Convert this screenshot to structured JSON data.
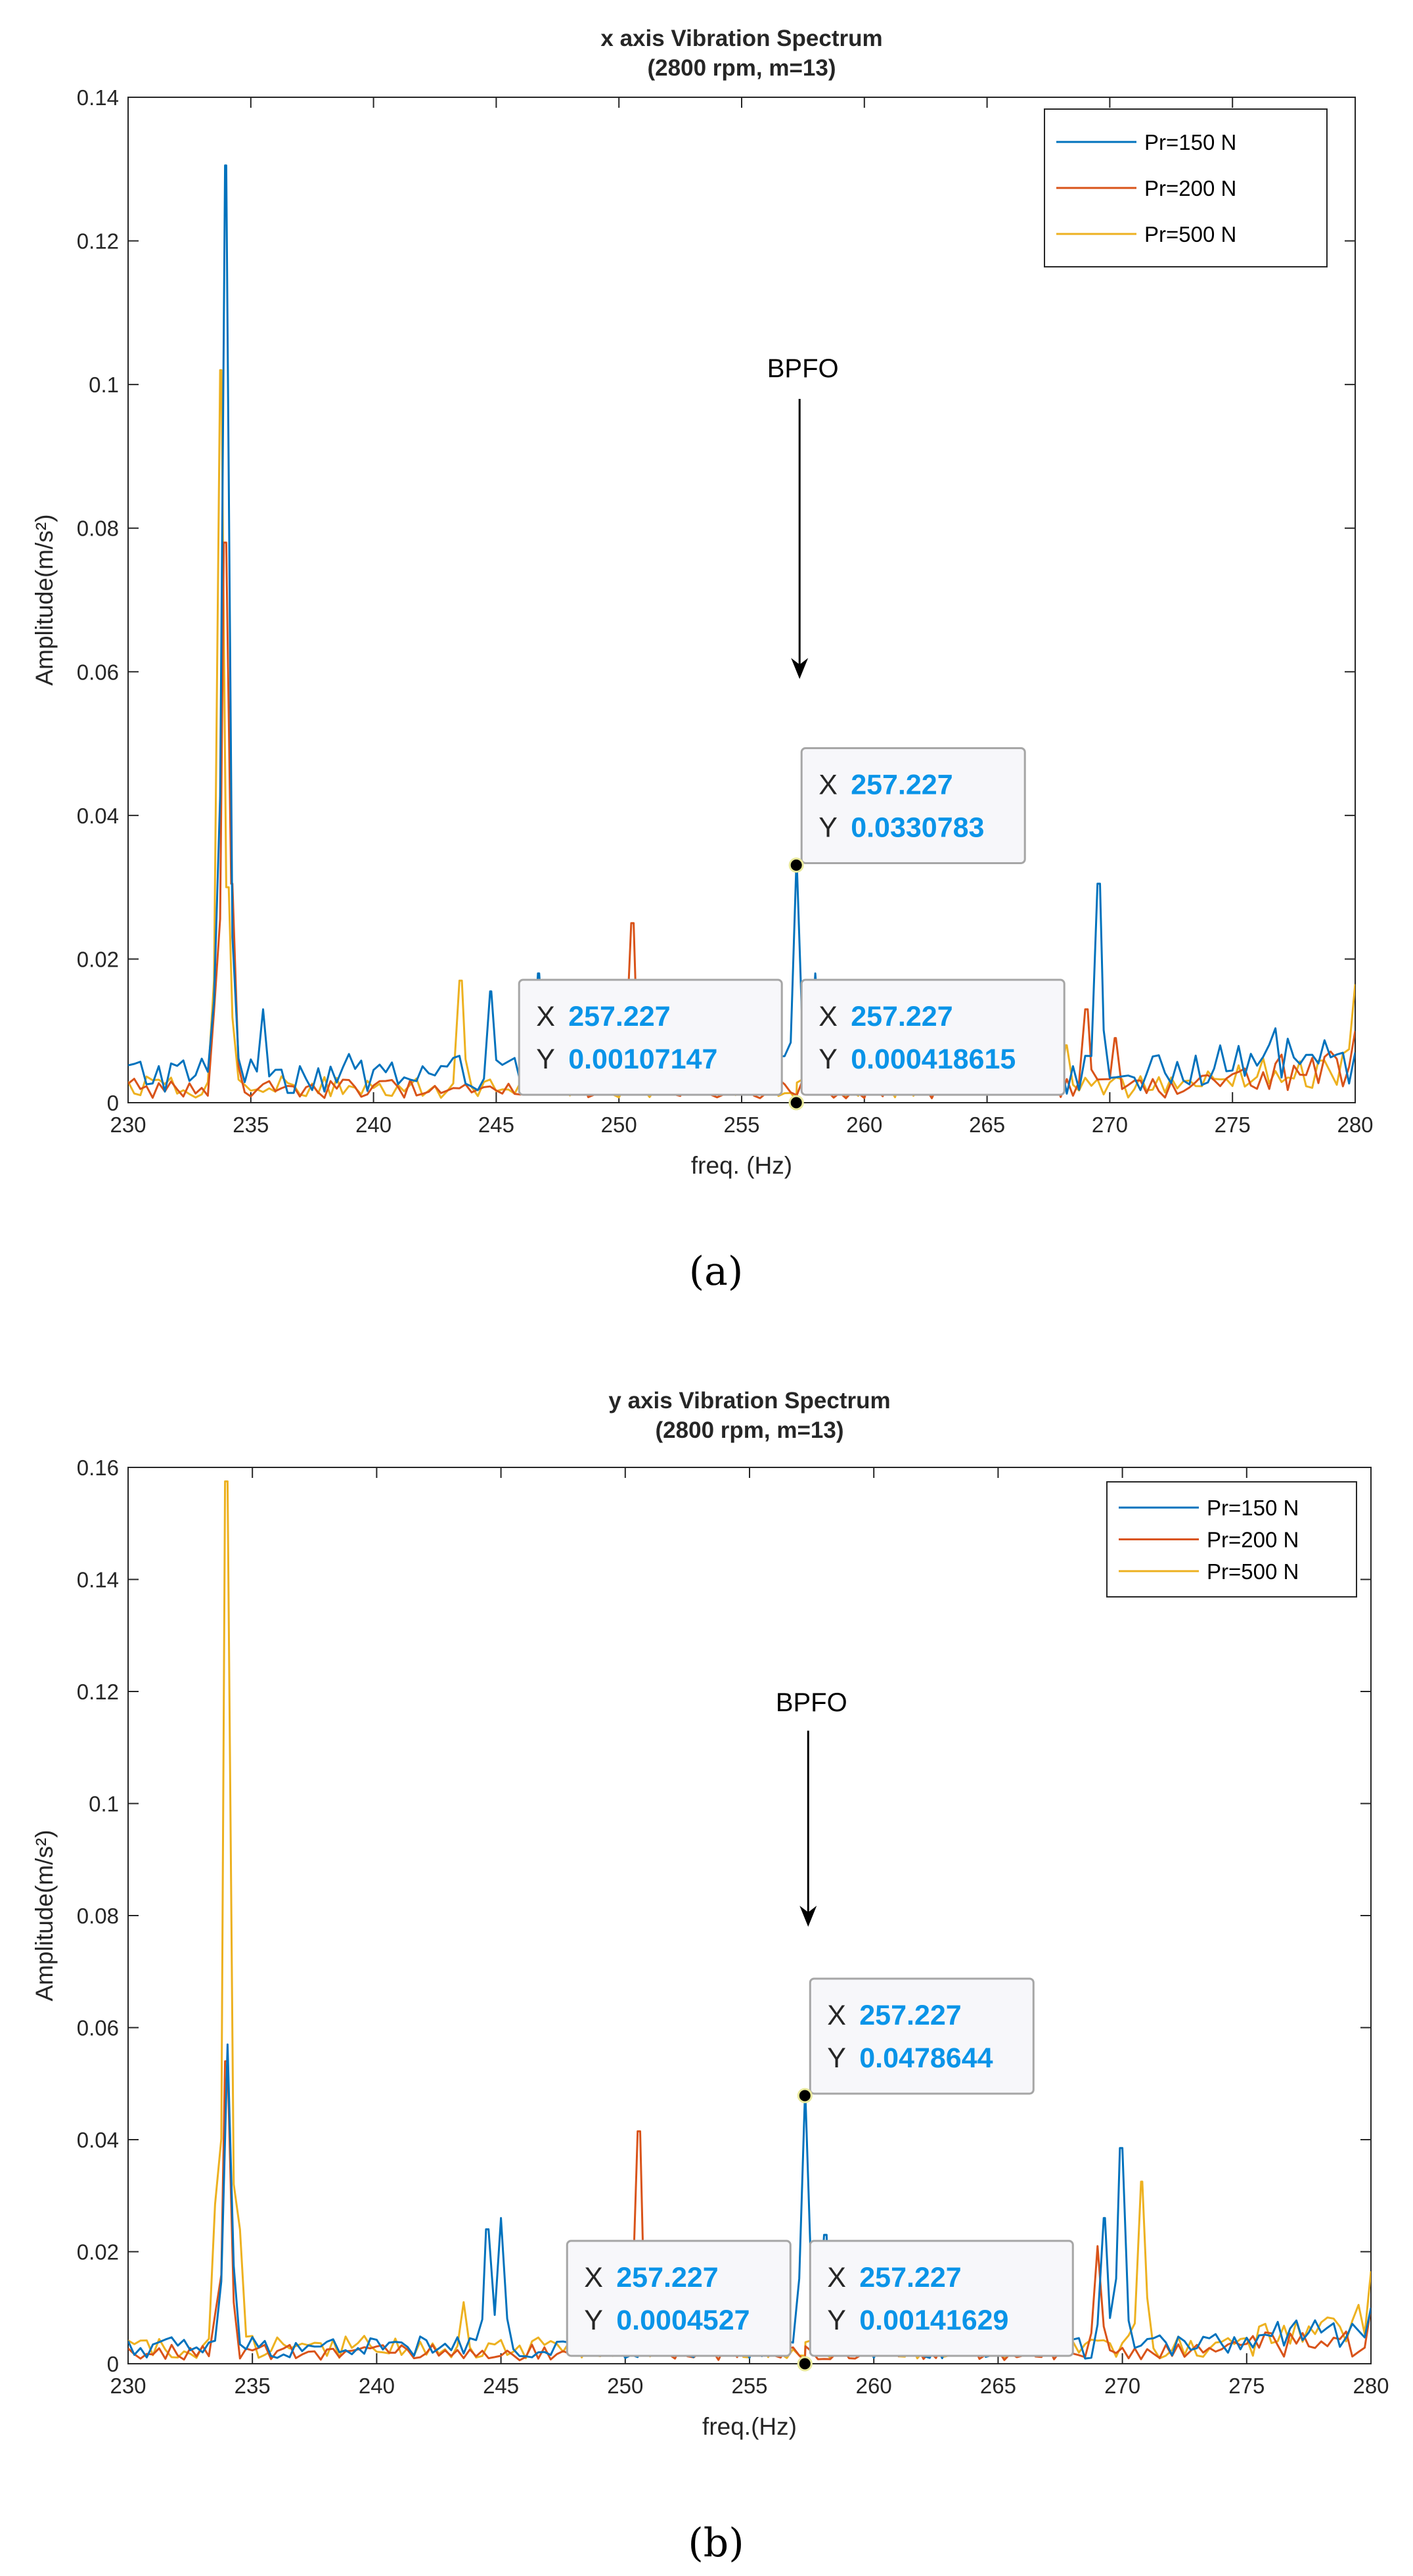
{
  "chart_data": [
    {
      "type": "line",
      "panel": "a",
      "caption": "(a)",
      "title": [
        "x axis Vibration Spectrum",
        "(2800 rpm, m=13)"
      ],
      "xlabel": "freq. (Hz)",
      "ylabel": "Amplitude(m/s²)",
      "xlim": [
        230,
        280
      ],
      "ylim": [
        0,
        0.14
      ],
      "xticks": [
        230,
        235,
        240,
        245,
        250,
        255,
        260,
        265,
        270,
        275,
        280
      ],
      "yticks": [
        0,
        0.02,
        0.04,
        0.06,
        0.08,
        0.1,
        0.12,
        0.14
      ],
      "ytick_labels": [
        "0",
        "0.02",
        "0.04",
        "0.06",
        "0.08",
        "0.1",
        "0.12",
        "0.14"
      ],
      "legend": {
        "placement": "top-right",
        "entries": [
          "Pr=150 N",
          "Pr=200 N",
          "Pr=500 N"
        ]
      },
      "colors": [
        "#0072bd",
        "#d95319",
        "#edb120"
      ],
      "series": [
        {
          "name": "Pr=150 N",
          "peaks": [
            [
              233.95,
              0.1305
            ],
            [
              234.3,
              0.02
            ],
            [
              235.5,
              0.013
            ],
            [
              246.7,
              0.018
            ],
            [
              244.8,
              0.0155
            ],
            [
              249.3,
              0.011
            ],
            [
              252.4,
              0.014
            ],
            [
              257.227,
              0.0330783
            ],
            [
              258.0,
              0.018
            ],
            [
              266.9,
              0.0105
            ],
            [
              269.6,
              0.0305
            ],
            [
              280,
              0.007
            ]
          ],
          "floor": 0.004
        },
        {
          "name": "Pr=200 N",
          "peaks": [
            [
              233.9,
              0.078
            ],
            [
              234.2,
              0.0305
            ],
            [
              250.6,
              0.025
            ],
            [
              257.227,
              0.00107147
            ],
            [
              269.1,
              0.013
            ],
            [
              270.2,
              0.009
            ],
            [
              280,
              0.01
            ]
          ],
          "floor": 0.002
        },
        {
          "name": "Pr=500 N",
          "peaks": [
            [
              233.8,
              0.102
            ],
            [
              234.1,
              0.03
            ],
            [
              243.6,
              0.017
            ],
            [
              257.227,
              0.000418615
            ],
            [
              268.2,
              0.008
            ],
            [
              280,
              0.0165
            ]
          ],
          "floor": 0.0022
        }
      ],
      "annotations": [
        {
          "text": "BPFO",
          "x": 257.227,
          "y_text": 0.101,
          "arrow_from": 0.098,
          "arrow_to": 0.059
        }
      ],
      "datatips": [
        {
          "x": "257.227",
          "y": "0.0330783",
          "xv": 257.227,
          "yv": 0.0330783,
          "pos": "upper-right"
        },
        {
          "x": "257.227",
          "y": "0.00107147",
          "xv": 257.227,
          "yv": 0.0,
          "pos": "upper-left"
        },
        {
          "x": "257.227",
          "y": "0.000418615",
          "xv": 257.227,
          "yv": 0.0,
          "pos": "upper-right"
        }
      ]
    },
    {
      "type": "line",
      "panel": "b",
      "caption": "(b)",
      "title": [
        "y axis Vibration Spectrum",
        "(2800 rpm, m=13)"
      ],
      "xlabel": "freq.(Hz)",
      "ylabel": "Amplitude(m/s²)",
      "xlim": [
        230,
        280
      ],
      "ylim": [
        0,
        0.16
      ],
      "xticks": [
        230,
        235,
        240,
        245,
        250,
        255,
        260,
        265,
        270,
        275,
        280
      ],
      "yticks": [
        0,
        0.02,
        0.04,
        0.06,
        0.08,
        0.1,
        0.12,
        0.14,
        0.16
      ],
      "ytick_labels": [
        "0",
        "0.02",
        "0.04",
        "0.06",
        "0.08",
        "0.1",
        "0.12",
        "0.14",
        "0.16"
      ],
      "legend": {
        "placement": "top-right",
        "entries": [
          "Pr=150 N",
          "Pr=200 N",
          "Pr=500 N"
        ]
      },
      "colors": [
        "#0072bd",
        "#d95319",
        "#edb120"
      ],
      "series": [
        {
          "name": "Pr=150 N",
          "peaks": [
            [
              234.0,
              0.057
            ],
            [
              244.4,
              0.024
            ],
            [
              245.0,
              0.026
            ],
            [
              257.227,
              0.0478644
            ],
            [
              258.1,
              0.023
            ],
            [
              269.3,
              0.026
            ],
            [
              269.9,
              0.0385
            ],
            [
              280,
              0.01
            ]
          ],
          "floor": 0.003
        },
        {
          "name": "Pr=200 N",
          "peaks": [
            [
              233.9,
              0.054
            ],
            [
              250.6,
              0.0415
            ],
            [
              257.227,
              0.0004527
            ],
            [
              269.0,
              0.021
            ],
            [
              280,
              0.01
            ]
          ],
          "floor": 0.002
        },
        {
          "name": "Pr=500 N",
          "peaks": [
            [
              233.9,
              0.1575
            ],
            [
              234.5,
              0.024
            ],
            [
              243.5,
              0.011
            ],
            [
              257.227,
              0.00141629
            ],
            [
              270.8,
              0.0325
            ],
            [
              280,
              0.0165
            ]
          ],
          "floor": 0.003
        }
      ],
      "annotations": [
        {
          "text": "BPFO",
          "x": 257.227,
          "y_text": 0.1165,
          "arrow_from": 0.113,
          "arrow_to": 0.078
        }
      ],
      "datatips": [
        {
          "x": "257.227",
          "y": "0.0478644",
          "xv": 257.227,
          "yv": 0.0478644,
          "pos": "upper-right"
        },
        {
          "x": "257.227",
          "y": "0.0004527",
          "xv": 257.227,
          "yv": 0.0,
          "pos": "upper-left"
        },
        {
          "x": "257.227",
          "y": "0.00141629",
          "xv": 257.227,
          "yv": 0.0,
          "pos": "upper-right"
        }
      ]
    }
  ]
}
